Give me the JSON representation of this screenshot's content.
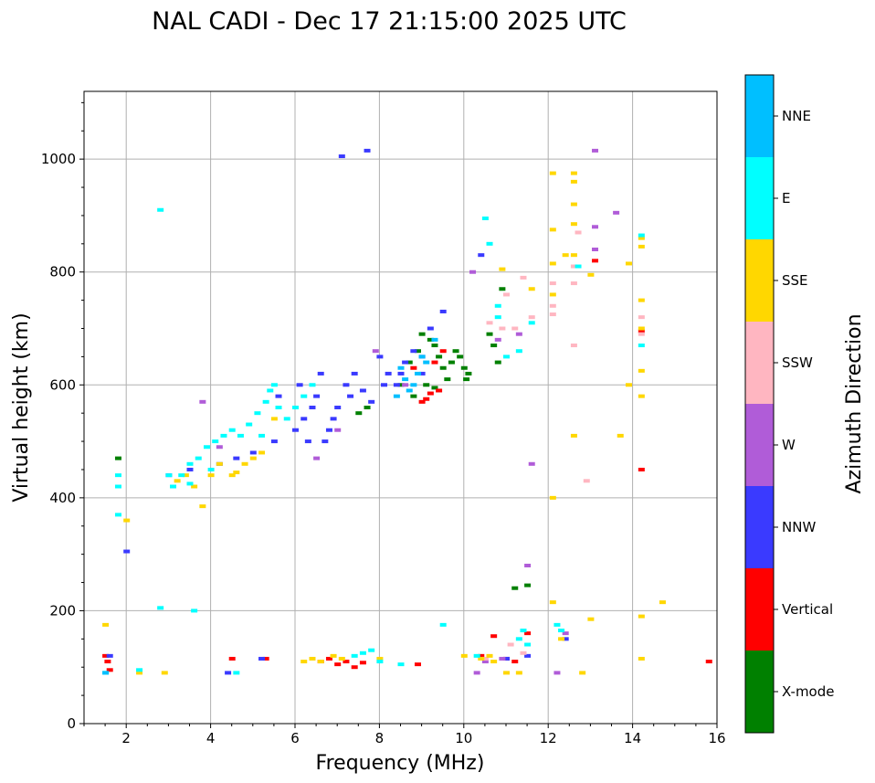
{
  "chart_data": {
    "type": "scatter",
    "title": "NAL CADI - Dec 17 21:15:00 2025 UTC",
    "xlabel": "Frequency (MHz)",
    "ylabel": "Virtual height (km)",
    "xlim": [
      1,
      16
    ],
    "ylim": [
      0,
      1120
    ],
    "xticks": [
      2,
      4,
      6,
      8,
      10,
      12,
      14,
      16
    ],
    "yticks": [
      0,
      200,
      400,
      600,
      800,
      1000
    ],
    "grid": true,
    "colorbar": {
      "label": "Azimuth Direction",
      "categories": [
        "X-mode",
        "Vertical",
        "NNW",
        "W",
        "SSW",
        "SSE",
        "E",
        "NNE"
      ],
      "colors": [
        "#008000",
        "#ff0000",
        "#3a3aff",
        "#b05cd8",
        "#ffb6c1",
        "#ffd700",
        "#00ffff",
        "#00bfff"
      ]
    },
    "series": [
      {
        "name": "X-mode",
        "color": "#008000",
        "points": [
          [
            1.8,
            470
          ],
          [
            7.5,
            550
          ],
          [
            7.7,
            560
          ],
          [
            8.5,
            600
          ],
          [
            8.7,
            640
          ],
          [
            8.9,
            660
          ],
          [
            9.0,
            690
          ],
          [
            9.2,
            680
          ],
          [
            9.3,
            670
          ],
          [
            9.4,
            650
          ],
          [
            9.5,
            630
          ],
          [
            9.6,
            610
          ],
          [
            9.7,
            640
          ],
          [
            9.8,
            660
          ],
          [
            9.9,
            650
          ],
          [
            10.0,
            630
          ],
          [
            10.05,
            610
          ],
          [
            10.1,
            620
          ],
          [
            10.6,
            690
          ],
          [
            10.7,
            670
          ],
          [
            10.8,
            640
          ],
          [
            10.9,
            770
          ],
          [
            11.2,
            240
          ],
          [
            11.5,
            245
          ],
          [
            8.8,
            580
          ],
          [
            9.1,
            600
          ],
          [
            9.3,
            595
          ]
        ]
      },
      {
        "name": "Vertical",
        "color": "#ff0000",
        "points": [
          [
            1.5,
            120
          ],
          [
            1.55,
            110
          ],
          [
            1.6,
            95
          ],
          [
            4.5,
            115
          ],
          [
            5.3,
            115
          ],
          [
            6.6,
            110
          ],
          [
            6.8,
            115
          ],
          [
            7.0,
            105
          ],
          [
            7.2,
            110
          ],
          [
            7.4,
            100
          ],
          [
            7.6,
            108
          ],
          [
            8.9,
            105
          ],
          [
            9.0,
            570
          ],
          [
            9.1,
            575
          ],
          [
            9.5,
            660
          ],
          [
            9.3,
            640
          ],
          [
            10.4,
            120
          ],
          [
            10.7,
            155
          ],
          [
            11.0,
            115
          ],
          [
            11.2,
            110
          ],
          [
            11.5,
            160
          ],
          [
            13.1,
            820
          ],
          [
            14.2,
            695
          ],
          [
            14.2,
            450
          ],
          [
            15.8,
            110
          ],
          [
            9.4,
            590
          ],
          [
            9.2,
            585
          ],
          [
            8.8,
            630
          ]
        ]
      },
      {
        "name": "NNW",
        "color": "#3a3aff",
        "points": [
          [
            1.6,
            120
          ],
          [
            2.0,
            305
          ],
          [
            3.0,
            440
          ],
          [
            3.5,
            450
          ],
          [
            4.2,
            460
          ],
          [
            4.6,
            470
          ],
          [
            5.0,
            480
          ],
          [
            5.5,
            500
          ],
          [
            6.0,
            520
          ],
          [
            6.2,
            540
          ],
          [
            6.4,
            560
          ],
          [
            6.5,
            580
          ],
          [
            6.6,
            620
          ],
          [
            6.7,
            500
          ],
          [
            6.8,
            520
          ],
          [
            7.0,
            560
          ],
          [
            7.2,
            600
          ],
          [
            7.4,
            620
          ],
          [
            7.6,
            590
          ],
          [
            7.8,
            570
          ],
          [
            8.0,
            650
          ],
          [
            8.2,
            620
          ],
          [
            8.4,
            600
          ],
          [
            8.6,
            640
          ],
          [
            8.8,
            660
          ],
          [
            9.0,
            620
          ],
          [
            9.2,
            700
          ],
          [
            9.5,
            730
          ],
          [
            10.4,
            830
          ],
          [
            11.0,
            115
          ],
          [
            11.5,
            120
          ],
          [
            12.4,
            150
          ],
          [
            7.1,
            1005
          ],
          [
            7.7,
            1015
          ],
          [
            5.6,
            580
          ],
          [
            6.1,
            600
          ],
          [
            6.3,
            500
          ],
          [
            6.9,
            540
          ],
          [
            7.3,
            580
          ],
          [
            8.1,
            600
          ],
          [
            8.5,
            620
          ],
          [
            9.0,
            650
          ],
          [
            4.4,
            90
          ],
          [
            5.2,
            115
          ]
        ]
      },
      {
        "name": "W",
        "color": "#b05cd8",
        "points": [
          [
            3.8,
            570
          ],
          [
            4.2,
            490
          ],
          [
            6.5,
            470
          ],
          [
            7.0,
            520
          ],
          [
            7.9,
            660
          ],
          [
            8.6,
            600
          ],
          [
            10.2,
            800
          ],
          [
            10.8,
            680
          ],
          [
            11.3,
            690
          ],
          [
            11.5,
            280
          ],
          [
            11.6,
            460
          ],
          [
            12.2,
            90
          ],
          [
            12.4,
            160
          ],
          [
            13.1,
            1015
          ],
          [
            13.1,
            880
          ],
          [
            13.1,
            840
          ],
          [
            13.6,
            905
          ],
          [
            10.3,
            90
          ],
          [
            10.5,
            110
          ],
          [
            10.9,
            115
          ]
        ]
      },
      {
        "name": "SSW",
        "color": "#ffb6c1",
        "points": [
          [
            10.6,
            710
          ],
          [
            10.9,
            700
          ],
          [
            11.0,
            760
          ],
          [
            11.2,
            700
          ],
          [
            11.4,
            790
          ],
          [
            11.6,
            720
          ],
          [
            12.1,
            780
          ],
          [
            12.1,
            740
          ],
          [
            12.1,
            725
          ],
          [
            12.6,
            810
          ],
          [
            12.6,
            780
          ],
          [
            12.6,
            670
          ],
          [
            12.7,
            870
          ],
          [
            12.9,
            430
          ],
          [
            14.2,
            720
          ],
          [
            14.2,
            690
          ],
          [
            11.1,
            140
          ],
          [
            11.4,
            125
          ],
          [
            10.5,
            115
          ]
        ]
      },
      {
        "name": "SSE",
        "color": "#ffd700",
        "points": [
          [
            1.5,
            175
          ],
          [
            2.0,
            360
          ],
          [
            2.3,
            90
          ],
          [
            2.9,
            90
          ],
          [
            3.2,
            430
          ],
          [
            3.4,
            440
          ],
          [
            3.6,
            420
          ],
          [
            3.8,
            385
          ],
          [
            4.0,
            440
          ],
          [
            4.2,
            460
          ],
          [
            4.5,
            440
          ],
          [
            4.8,
            460
          ],
          [
            5.2,
            480
          ],
          [
            5.5,
            540
          ],
          [
            6.2,
            110
          ],
          [
            6.4,
            115
          ],
          [
            6.6,
            110
          ],
          [
            6.9,
            120
          ],
          [
            7.1,
            115
          ],
          [
            8.0,
            115
          ],
          [
            10.0,
            120
          ],
          [
            10.4,
            115
          ],
          [
            10.6,
            120
          ],
          [
            10.7,
            110
          ],
          [
            10.9,
            805
          ],
          [
            11.0,
            90
          ],
          [
            11.3,
            90
          ],
          [
            11.6,
            770
          ],
          [
            12.1,
            975
          ],
          [
            12.1,
            875
          ],
          [
            12.1,
            815
          ],
          [
            12.1,
            760
          ],
          [
            12.1,
            400
          ],
          [
            12.1,
            215
          ],
          [
            12.3,
            150
          ],
          [
            12.4,
            830
          ],
          [
            12.6,
            975
          ],
          [
            12.6,
            960
          ],
          [
            12.6,
            920
          ],
          [
            12.6,
            885
          ],
          [
            12.6,
            830
          ],
          [
            12.6,
            510
          ],
          [
            12.8,
            90
          ],
          [
            13.0,
            795
          ],
          [
            13.0,
            185
          ],
          [
            13.7,
            510
          ],
          [
            13.9,
            815
          ],
          [
            13.9,
            600
          ],
          [
            14.2,
            860
          ],
          [
            14.2,
            845
          ],
          [
            14.2,
            750
          ],
          [
            14.2,
            700
          ],
          [
            14.2,
            625
          ],
          [
            14.2,
            580
          ],
          [
            14.2,
            190
          ],
          [
            14.2,
            115
          ],
          [
            14.7,
            215
          ],
          [
            5.0,
            470
          ],
          [
            4.6,
            445
          ]
        ]
      },
      {
        "name": "E",
        "color": "#00ffff",
        "points": [
          [
            1.5,
            90
          ],
          [
            1.8,
            420
          ],
          [
            1.8,
            440
          ],
          [
            1.8,
            370
          ],
          [
            2.3,
            95
          ],
          [
            2.8,
            910
          ],
          [
            3.1,
            420
          ],
          [
            3.3,
            440
          ],
          [
            3.5,
            460
          ],
          [
            3.7,
            470
          ],
          [
            3.9,
            490
          ],
          [
            4.1,
            500
          ],
          [
            4.3,
            510
          ],
          [
            4.5,
            520
          ],
          [
            4.7,
            510
          ],
          [
            4.9,
            530
          ],
          [
            5.1,
            550
          ],
          [
            5.3,
            570
          ],
          [
            5.4,
            590
          ],
          [
            5.5,
            600
          ],
          [
            5.6,
            560
          ],
          [
            5.8,
            540
          ],
          [
            6.0,
            560
          ],
          [
            6.2,
            580
          ],
          [
            6.4,
            600
          ],
          [
            7.4,
            120
          ],
          [
            7.6,
            125
          ],
          [
            7.8,
            130
          ],
          [
            8.0,
            110
          ],
          [
            8.5,
            105
          ],
          [
            10.3,
            120
          ],
          [
            10.5,
            895
          ],
          [
            10.6,
            850
          ],
          [
            10.8,
            740
          ],
          [
            10.8,
            720
          ],
          [
            11.0,
            650
          ],
          [
            11.3,
            660
          ],
          [
            11.4,
            165
          ],
          [
            11.5,
            140
          ],
          [
            11.6,
            710
          ],
          [
            12.2,
            175
          ],
          [
            12.3,
            165
          ],
          [
            12.7,
            810
          ],
          [
            14.2,
            865
          ],
          [
            14.2,
            670
          ],
          [
            3.6,
            200
          ],
          [
            2.8,
            205
          ],
          [
            4.6,
            90
          ],
          [
            11.3,
            150
          ],
          [
            9.5,
            175
          ],
          [
            3.5,
            425
          ],
          [
            4.0,
            450
          ],
          [
            3.0,
            440
          ],
          [
            5.2,
            510
          ]
        ]
      },
      {
        "name": "NNE",
        "color": "#00bfff",
        "points": [
          [
            1.5,
            90
          ],
          [
            8.5,
            630
          ],
          [
            8.6,
            610
          ],
          [
            8.8,
            600
          ],
          [
            8.9,
            620
          ],
          [
            9.0,
            650
          ],
          [
            9.1,
            640
          ],
          [
            8.4,
            580
          ],
          [
            8.7,
            590
          ],
          [
            9.3,
            680
          ]
        ]
      }
    ]
  }
}
